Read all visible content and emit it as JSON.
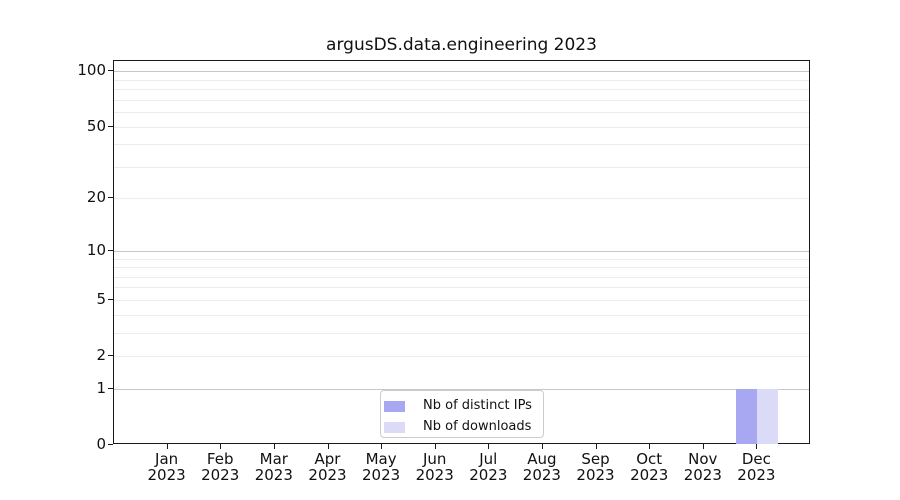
{
  "chart_data": {
    "type": "bar",
    "title": "argusDS.data.engineering 2023",
    "categories": [
      "Jan",
      "Feb",
      "Mar",
      "Apr",
      "May",
      "Jun",
      "Jul",
      "Aug",
      "Sep",
      "Oct",
      "Nov",
      "Dec"
    ],
    "category_year": "2023",
    "series": [
      {
        "name": "Nb of distinct IPs",
        "color": "#a8a8f2",
        "values": [
          0,
          0,
          0,
          0,
          0,
          0,
          0,
          0,
          0,
          0,
          0,
          1
        ]
      },
      {
        "name": "Nb of downloads",
        "color": "#dbdbf8",
        "values": [
          0,
          0,
          0,
          0,
          0,
          0,
          0,
          0,
          0,
          0,
          0,
          1
        ]
      }
    ],
    "yscale": "log1p",
    "ylim": [
      0,
      113.6
    ],
    "yticks": [
      0,
      1,
      2,
      5,
      10,
      20,
      50,
      100
    ],
    "grid_major": [
      1,
      10,
      100
    ],
    "grid_minor": [
      2,
      3,
      4,
      5,
      6,
      7,
      8,
      9,
      20,
      30,
      40,
      50,
      60,
      70,
      80,
      90
    ],
    "grid": "horizontal",
    "legend_position": "lower center",
    "colors": {
      "grid_major": "#c7c7c7",
      "grid_minor": "#ececec",
      "spine": "#1a1a1a",
      "legend_border": "#cccccc"
    }
  }
}
